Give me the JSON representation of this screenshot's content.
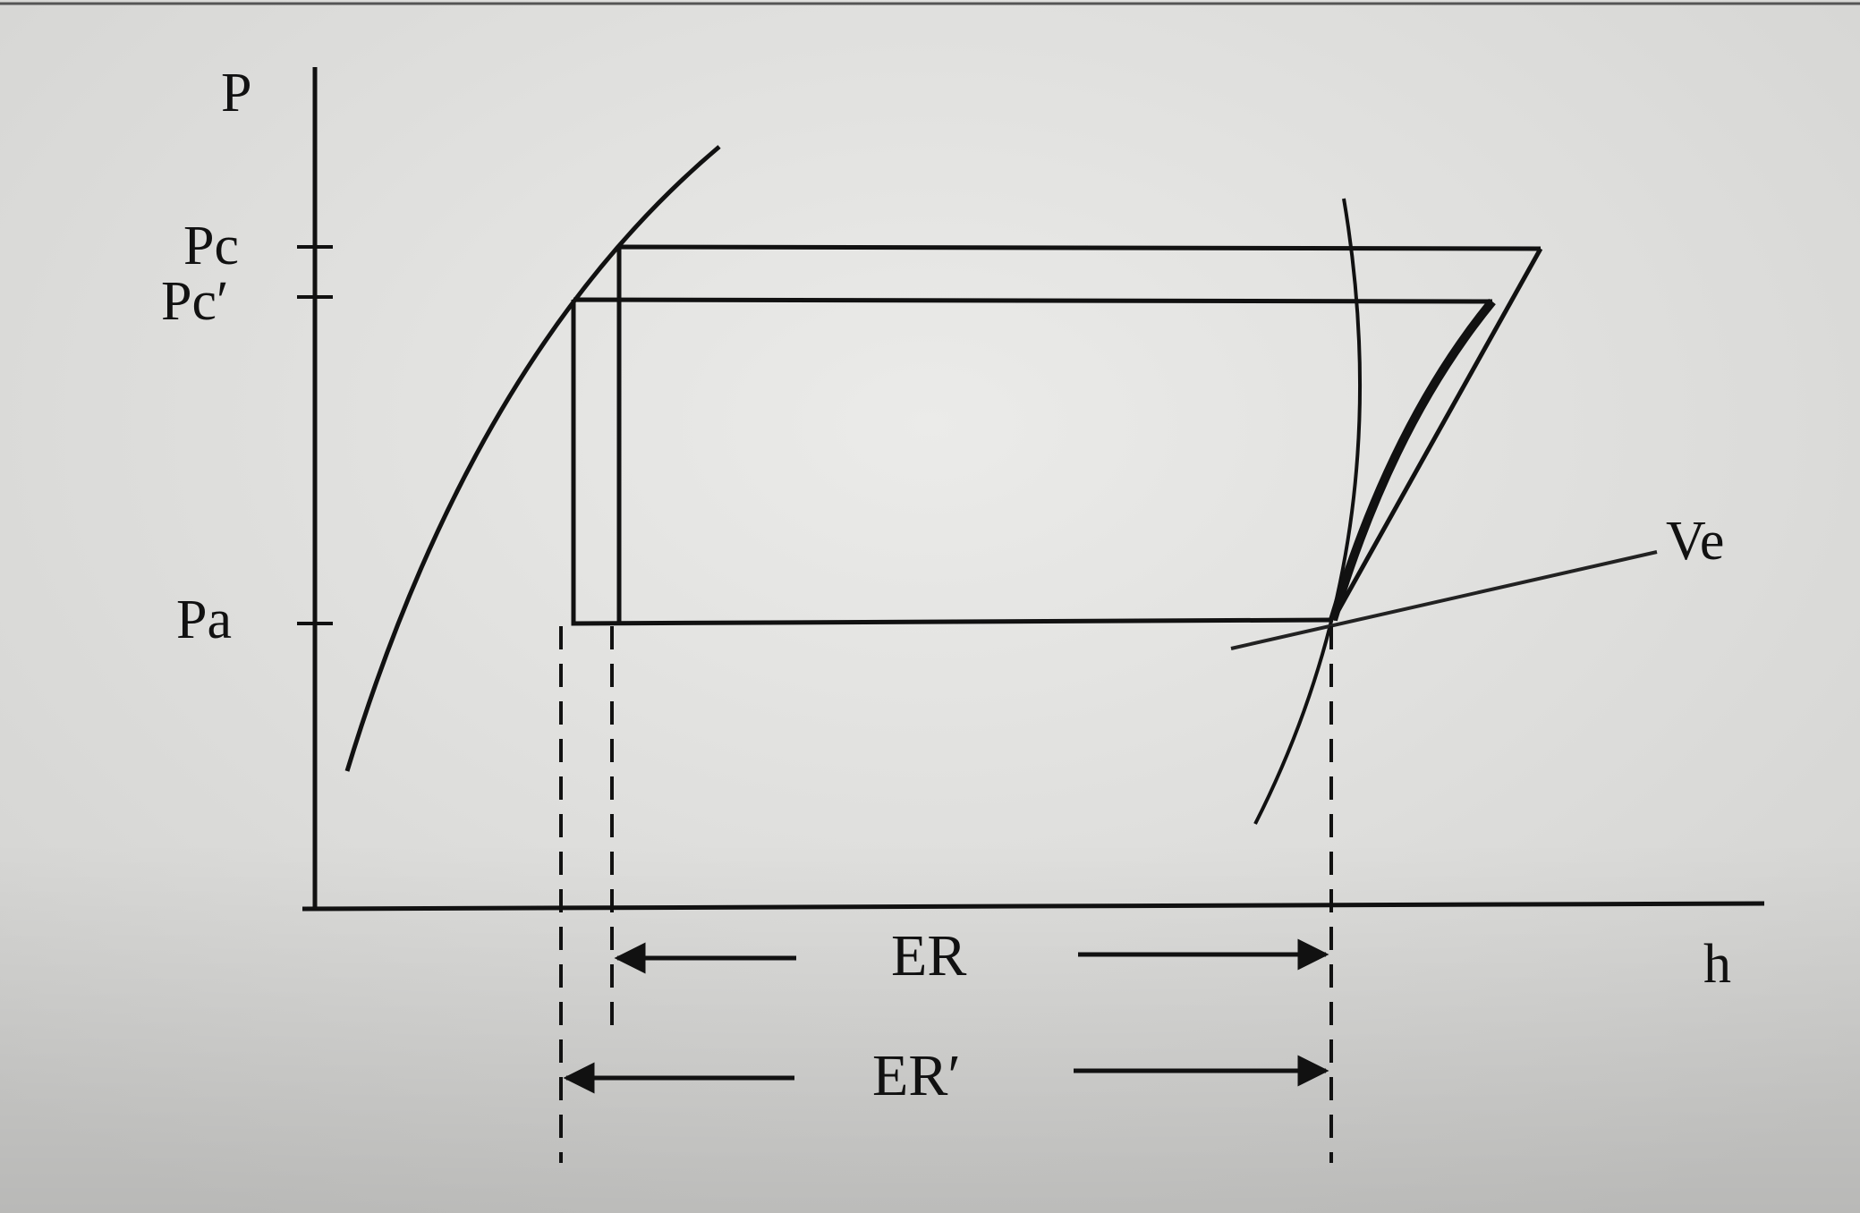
{
  "colors": {
    "background": "#d6d6d4",
    "paper_light": "#e7e7e5",
    "ink": "#111111"
  },
  "axes": {
    "y_label": "P",
    "x_label": "h"
  },
  "pressure_levels": {
    "pc": "Pc",
    "pc_prime": "Pc′",
    "pa": "Pa"
  },
  "annotations": {
    "ve": "Ve",
    "er": "ER",
    "er_prime": "ER′"
  }
}
